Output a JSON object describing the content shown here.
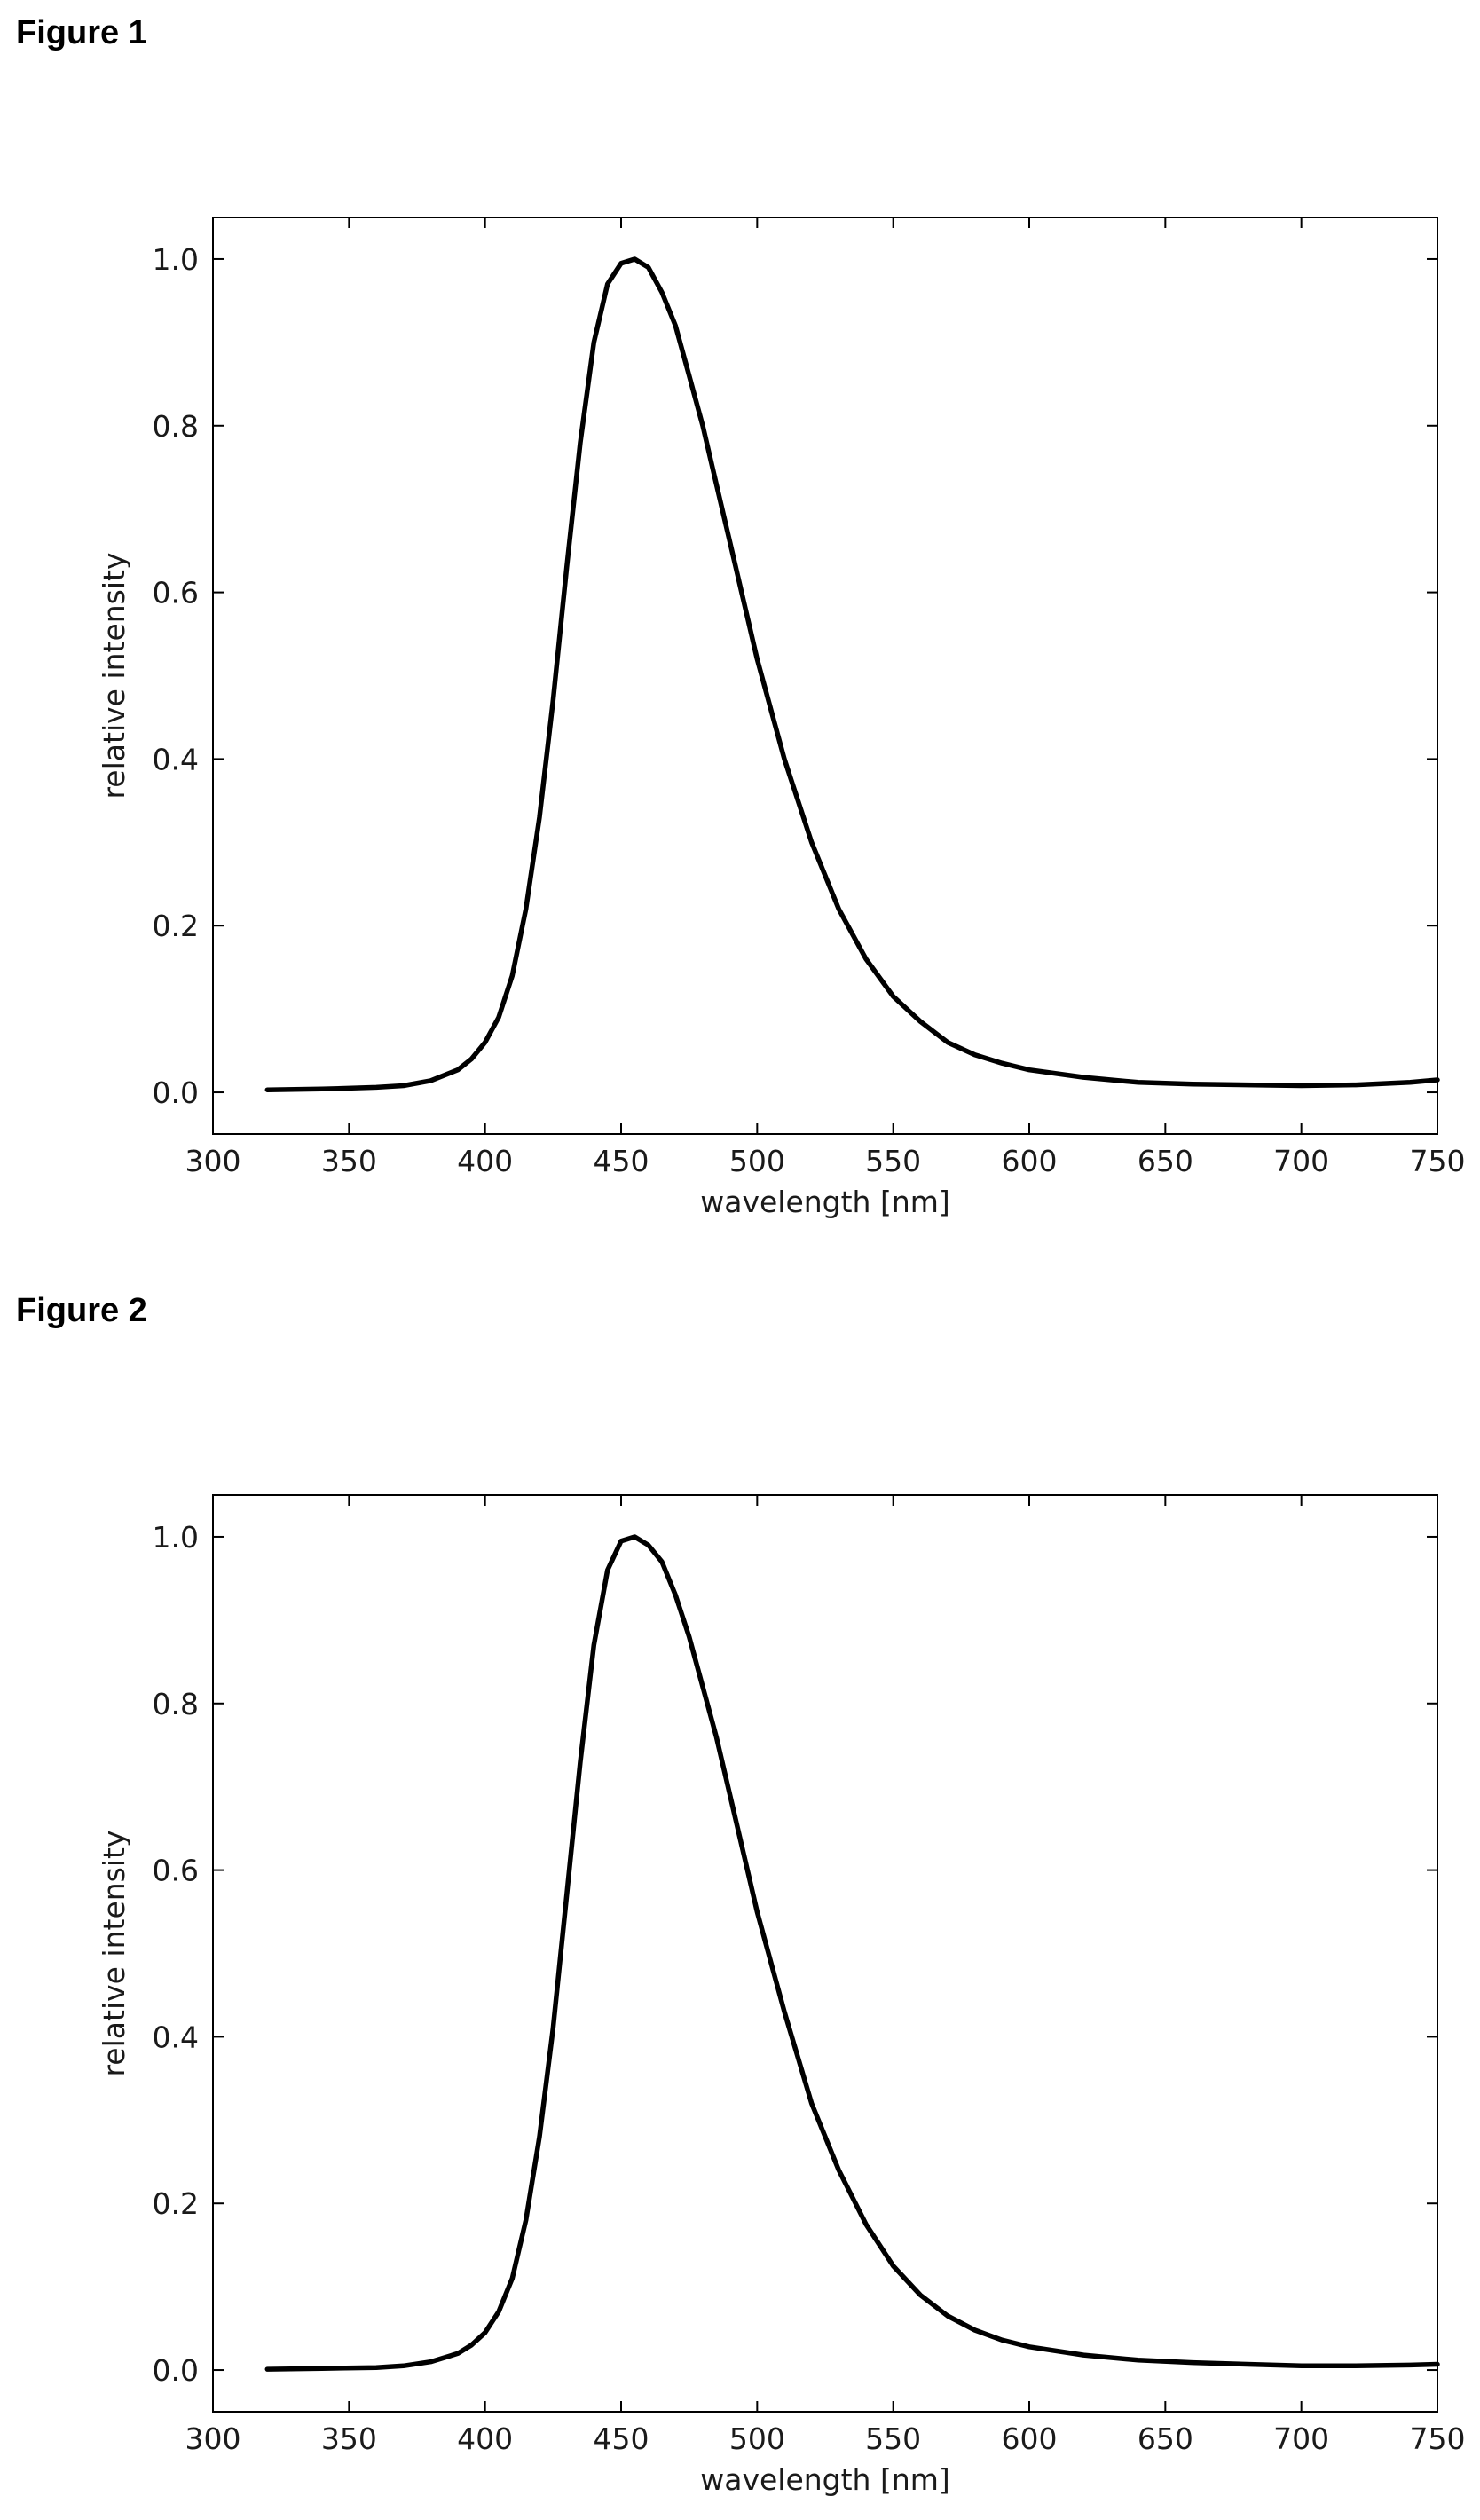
{
  "figures": [
    {
      "label": "Figure 1"
    },
    {
      "label": "Figure 2"
    }
  ],
  "chart_data": [
    {
      "type": "line",
      "title": "",
      "xlabel": "wavelength [nm]",
      "ylabel": "relative intensity",
      "xlim": [
        300,
        750
      ],
      "ylim": [
        -0.05,
        1.05
      ],
      "xticks": [
        300,
        350,
        400,
        450,
        500,
        550,
        600,
        650,
        700,
        750
      ],
      "yticks": [
        0.0,
        0.2,
        0.4,
        0.6,
        0.8,
        1.0
      ],
      "ytick_labels": [
        "0.0",
        "0.2",
        "0.4",
        "0.6",
        "0.8",
        "1.0"
      ],
      "xtick_labels": [
        "300",
        "350",
        "400",
        "450",
        "500",
        "550",
        "600",
        "650",
        "700",
        "750"
      ],
      "grid": false,
      "series": [
        {
          "color": "#000000",
          "x": [
            320,
            340,
            360,
            370,
            380,
            390,
            395,
            400,
            405,
            410,
            415,
            420,
            425,
            430,
            435,
            440,
            445,
            450,
            455,
            460,
            465,
            470,
            475,
            480,
            485,
            490,
            495,
            500,
            510,
            520,
            530,
            540,
            550,
            560,
            570,
            580,
            590,
            600,
            620,
            640,
            660,
            680,
            700,
            720,
            740,
            750
          ],
          "y": [
            0.003,
            0.004,
            0.006,
            0.008,
            0.014,
            0.027,
            0.04,
            0.06,
            0.09,
            0.14,
            0.22,
            0.33,
            0.47,
            0.63,
            0.78,
            0.9,
            0.97,
            0.995,
            1.0,
            0.99,
            0.96,
            0.92,
            0.86,
            0.8,
            0.73,
            0.66,
            0.59,
            0.52,
            0.4,
            0.3,
            0.22,
            0.16,
            0.115,
            0.085,
            0.06,
            0.045,
            0.035,
            0.027,
            0.018,
            0.012,
            0.01,
            0.009,
            0.008,
            0.009,
            0.012,
            0.015
          ]
        }
      ]
    },
    {
      "type": "line",
      "title": "",
      "xlabel": "wavelength [nm]",
      "ylabel": "relative intensity",
      "xlim": [
        300,
        750
      ],
      "ylim": [
        -0.05,
        1.05
      ],
      "xticks": [
        300,
        350,
        400,
        450,
        500,
        550,
        600,
        650,
        700,
        750
      ],
      "yticks": [
        0.0,
        0.2,
        0.4,
        0.6,
        0.8,
        1.0
      ],
      "ytick_labels": [
        "0.0",
        "0.2",
        "0.4",
        "0.6",
        "0.8",
        "1.0"
      ],
      "xtick_labels": [
        "300",
        "350",
        "400",
        "450",
        "500",
        "550",
        "600",
        "650",
        "700",
        "750"
      ],
      "grid": false,
      "series": [
        {
          "color": "#000000",
          "x": [
            320,
            340,
            360,
            370,
            380,
            390,
            395,
            400,
            405,
            410,
            415,
            420,
            425,
            430,
            435,
            440,
            445,
            450,
            455,
            460,
            465,
            470,
            475,
            480,
            485,
            490,
            495,
            500,
            510,
            520,
            530,
            540,
            550,
            560,
            570,
            580,
            590,
            600,
            620,
            640,
            660,
            680,
            700,
            720,
            740,
            750
          ],
          "y": [
            0.001,
            0.002,
            0.003,
            0.005,
            0.01,
            0.02,
            0.03,
            0.045,
            0.07,
            0.11,
            0.18,
            0.28,
            0.41,
            0.57,
            0.73,
            0.87,
            0.96,
            0.995,
            1.0,
            0.99,
            0.97,
            0.93,
            0.88,
            0.82,
            0.76,
            0.69,
            0.62,
            0.55,
            0.43,
            0.32,
            0.24,
            0.175,
            0.125,
            0.09,
            0.065,
            0.048,
            0.036,
            0.028,
            0.018,
            0.012,
            0.009,
            0.007,
            0.005,
            0.005,
            0.006,
            0.007
          ]
        }
      ]
    }
  ]
}
